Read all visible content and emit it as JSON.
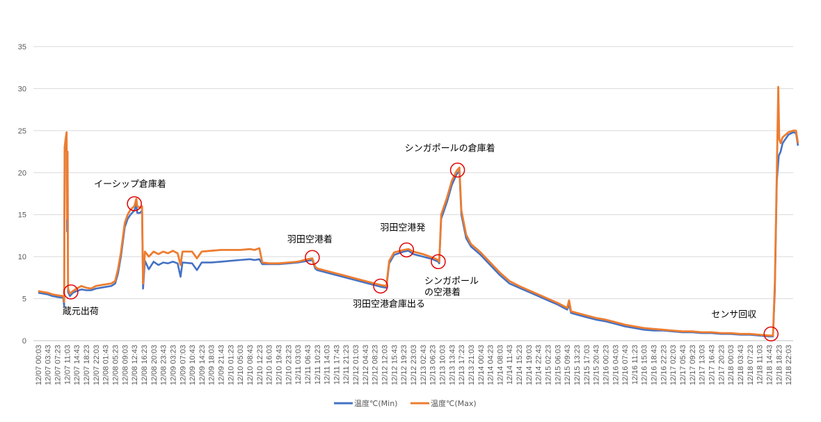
{
  "chart_data": {
    "type": "line",
    "ylim": [
      0,
      35
    ],
    "yticks": [
      0,
      5,
      10,
      15,
      20,
      25,
      30,
      35
    ],
    "grid": true,
    "legend": "bottom",
    "categories": [
      "12/07 00:03",
      "12/07 03:43",
      "12/07 07:23",
      "12/07 11:03",
      "12/07 14:43",
      "12/07 18:23",
      "12/07 22:03",
      "12/08 01:43",
      "12/08 05:23",
      "12/08 09:03",
      "12/08 12:43",
      "12/08 16:23",
      "12/08 20:03",
      "12/08 23:43",
      "12/09 03:23",
      "12/09 07:03",
      "12/09 10:43",
      "12/09 14:23",
      "12/09 18:03",
      "12/09 21:43",
      "12/10 01:23",
      "12/10 05:03",
      "12/10 08:43",
      "12/10 12:23",
      "12/10 16:03",
      "12/10 19:43",
      "12/10 23:23",
      "12/11 03:03",
      "12/11 06:43",
      "12/11 10:23",
      "12/11 14:03",
      "12/11 17:43",
      "12/11 21:23",
      "12/12 01:03",
      "12/12 04:43",
      "12/12 08:23",
      "12/12 12:03",
      "12/12 15:43",
      "12/12 19:23",
      "12/12 23:03",
      "12/13 02:43",
      "12/13 06:23",
      "12/13 10:03",
      "12/13 13:43",
      "12/13 17:23",
      "12/13 21:03",
      "12/14 00:43",
      "12/14 04:23",
      "12/14 08:03",
      "12/14 11:43",
      "12/14 15:23",
      "12/14 19:03",
      "12/14 22:43",
      "12/15 02:23",
      "12/15 06:03",
      "12/15 09:43",
      "12/15 13:23",
      "12/15 17:03",
      "12/15 20:43",
      "12/16 00:23",
      "12/16 04:03",
      "12/16 07:43",
      "12/16 11:23",
      "12/16 15:03",
      "12/16 18:43",
      "12/16 22:23",
      "12/17 02:03",
      "12/17 05:43",
      "12/17 09:23",
      "12/17 13:03",
      "12/17 16:43",
      "12/17 20:23",
      "12/18 00:03",
      "12/18 03:43",
      "12/18 07:23",
      "12/18 11:03",
      "12/18 14:43",
      "12/18 18:23",
      "12/18 22:03"
    ],
    "series": [
      {
        "name": "温度℃(Min)",
        "color": "#4472C4",
        "points": [
          [
            0,
            5.7
          ],
          [
            1,
            5.5
          ],
          [
            1.5,
            5.3
          ],
          [
            2,
            5.2
          ],
          [
            2.6,
            5.1
          ],
          [
            2.7,
            4.1
          ],
          [
            2.75,
            22.5
          ],
          [
            2.85,
            23.0
          ],
          [
            2.95,
            24.0
          ],
          [
            3.0,
            13.0
          ],
          [
            3.05,
            21.5
          ],
          [
            3.1,
            5.8
          ],
          [
            3.3,
            5.3
          ],
          [
            3.6,
            5.7
          ],
          [
            4,
            5.9
          ],
          [
            4.5,
            6.1
          ],
          [
            5,
            6.0
          ],
          [
            5.5,
            6.0
          ],
          [
            6,
            6.2
          ],
          [
            7,
            6.4
          ],
          [
            7.6,
            6.5
          ],
          [
            8,
            6.8
          ],
          [
            8.3,
            8.0
          ],
          [
            8.6,
            10.0
          ],
          [
            9,
            13.5
          ],
          [
            9.3,
            14.5
          ],
          [
            9.6,
            15.0
          ],
          [
            10,
            15.5
          ],
          [
            10.2,
            16.2
          ],
          [
            10.3,
            15.2
          ],
          [
            10.6,
            15.2
          ],
          [
            10.8,
            15.5
          ],
          [
            10.9,
            6.2
          ],
          [
            11.1,
            9.5
          ],
          [
            11.5,
            8.5
          ],
          [
            12,
            9.4
          ],
          [
            12.5,
            9.0
          ],
          [
            13,
            9.3
          ],
          [
            13.5,
            9.2
          ],
          [
            14,
            9.4
          ],
          [
            14.5,
            9.2
          ],
          [
            14.8,
            7.6
          ],
          [
            15,
            9.3
          ],
          [
            16,
            9.2
          ],
          [
            16.5,
            8.4
          ],
          [
            17,
            9.3
          ],
          [
            18,
            9.3
          ],
          [
            19,
            9.4
          ],
          [
            20,
            9.5
          ],
          [
            21,
            9.6
          ],
          [
            22,
            9.7
          ],
          [
            22.5,
            9.6
          ],
          [
            23,
            9.7
          ],
          [
            23.3,
            9.1
          ],
          [
            24,
            9.1
          ],
          [
            25,
            9.1
          ],
          [
            26,
            9.2
          ],
          [
            27,
            9.3
          ],
          [
            28,
            9.5
          ],
          [
            28.5,
            9.6
          ],
          [
            28.8,
            8.6
          ],
          [
            29,
            8.4
          ],
          [
            30,
            8.1
          ],
          [
            31,
            7.8
          ],
          [
            32,
            7.5
          ],
          [
            33,
            7.2
          ],
          [
            34,
            6.9
          ],
          [
            35,
            6.6
          ],
          [
            35.7,
            6.4
          ],
          [
            36.2,
            6.3
          ],
          [
            36.5,
            9.2
          ],
          [
            37,
            10.2
          ],
          [
            38,
            10.6
          ],
          [
            38.5,
            10.7
          ],
          [
            39,
            10.3
          ],
          [
            40,
            10.0
          ],
          [
            41,
            9.7
          ],
          [
            41.6,
            9.4
          ],
          [
            41.7,
            9.2
          ],
          [
            41.9,
            14.5
          ],
          [
            42.5,
            16.5
          ],
          [
            43,
            18.5
          ],
          [
            43.5,
            19.8
          ],
          [
            43.8,
            20.2
          ],
          [
            44,
            15.0
          ],
          [
            44.5,
            12.2
          ],
          [
            45,
            11.2
          ],
          [
            46,
            10.2
          ],
          [
            47,
            9.0
          ],
          [
            48,
            7.8
          ],
          [
            49,
            6.8
          ],
          [
            50,
            6.3
          ],
          [
            51,
            5.8
          ],
          [
            52,
            5.3
          ],
          [
            53,
            4.8
          ],
          [
            54,
            4.3
          ],
          [
            54.5,
            4.0
          ],
          [
            55,
            3.7
          ],
          [
            55.2,
            4.3
          ],
          [
            55.4,
            3.3
          ],
          [
            56,
            3.1
          ],
          [
            57,
            2.8
          ],
          [
            58,
            2.5
          ],
          [
            59,
            2.3
          ],
          [
            60,
            2.0
          ],
          [
            61,
            1.7
          ],
          [
            62,
            1.5
          ],
          [
            63,
            1.3
          ],
          [
            64,
            1.2
          ],
          [
            65,
            1.2
          ],
          [
            66,
            1.1
          ],
          [
            67,
            1.0
          ],
          [
            68,
            1.0
          ],
          [
            69,
            0.9
          ],
          [
            70,
            0.9
          ],
          [
            71,
            0.8
          ],
          [
            72,
            0.8
          ],
          [
            73,
            0.7
          ],
          [
            74,
            0.7
          ],
          [
            75,
            0.6
          ],
          [
            76,
            0.5
          ],
          [
            76.4,
            0.5
          ],
          [
            76.6,
            6.0
          ],
          [
            76.8,
            19.0
          ],
          [
            77.0,
            22.0
          ],
          [
            77.2,
            22.5
          ],
          [
            77.4,
            23.5
          ],
          [
            78,
            24.5
          ],
          [
            78.5,
            24.8
          ],
          [
            78.8,
            24.7
          ],
          [
            79,
            23.2
          ]
        ]
      },
      {
        "name": "温度℃(Max)",
        "color": "#ED7D31",
        "points": [
          [
            0,
            5.9
          ],
          [
            1,
            5.7
          ],
          [
            1.5,
            5.5
          ],
          [
            2,
            5.4
          ],
          [
            2.6,
            5.3
          ],
          [
            2.7,
            4.6
          ],
          [
            2.75,
            23.0
          ],
          [
            2.85,
            24.0
          ],
          [
            2.95,
            24.8
          ],
          [
            3.0,
            14.5
          ],
          [
            3.05,
            22.5
          ],
          [
            3.1,
            6.2
          ],
          [
            3.3,
            5.6
          ],
          [
            3.6,
            5.9
          ],
          [
            4,
            6.2
          ],
          [
            4.5,
            6.5
          ],
          [
            5,
            6.3
          ],
          [
            5.5,
            6.2
          ],
          [
            6,
            6.5
          ],
          [
            7,
            6.7
          ],
          [
            7.6,
            6.8
          ],
          [
            8,
            7.1
          ],
          [
            8.3,
            8.5
          ],
          [
            8.6,
            10.5
          ],
          [
            9,
            14.0
          ],
          [
            9.3,
            15.0
          ],
          [
            9.6,
            15.6
          ],
          [
            10,
            16.0
          ],
          [
            10.2,
            16.9
          ],
          [
            10.3,
            16.0
          ],
          [
            10.6,
            15.8
          ],
          [
            10.8,
            16.0
          ],
          [
            10.9,
            6.8
          ],
          [
            11.1,
            10.6
          ],
          [
            11.5,
            10.0
          ],
          [
            12,
            10.6
          ],
          [
            12.5,
            10.3
          ],
          [
            13,
            10.6
          ],
          [
            13.5,
            10.4
          ],
          [
            14,
            10.7
          ],
          [
            14.5,
            10.4
          ],
          [
            14.8,
            9.0
          ],
          [
            15,
            10.6
          ],
          [
            16,
            10.6
          ],
          [
            16.5,
            9.8
          ],
          [
            17,
            10.6
          ],
          [
            18,
            10.7
          ],
          [
            19,
            10.8
          ],
          [
            20,
            10.8
          ],
          [
            21,
            10.8
          ],
          [
            22,
            10.9
          ],
          [
            22.5,
            10.8
          ],
          [
            23,
            11.0
          ],
          [
            23.3,
            9.3
          ],
          [
            24,
            9.2
          ],
          [
            25,
            9.2
          ],
          [
            26,
            9.3
          ],
          [
            27,
            9.4
          ],
          [
            28,
            9.7
          ],
          [
            28.5,
            9.8
          ],
          [
            28.8,
            8.8
          ],
          [
            29,
            8.6
          ],
          [
            30,
            8.3
          ],
          [
            31,
            8.0
          ],
          [
            32,
            7.7
          ],
          [
            33,
            7.4
          ],
          [
            34,
            7.1
          ],
          [
            35,
            6.8
          ],
          [
            35.7,
            6.6
          ],
          [
            36.2,
            6.5
          ],
          [
            36.5,
            9.5
          ],
          [
            37,
            10.5
          ],
          [
            38,
            10.8
          ],
          [
            38.5,
            10.9
          ],
          [
            39,
            10.6
          ],
          [
            40,
            10.3
          ],
          [
            41,
            9.9
          ],
          [
            41.6,
            9.6
          ],
          [
            41.7,
            9.4
          ],
          [
            41.9,
            15.0
          ],
          [
            42.5,
            17.0
          ],
          [
            43,
            19.0
          ],
          [
            43.5,
            20.2
          ],
          [
            43.8,
            20.6
          ],
          [
            44,
            15.5
          ],
          [
            44.5,
            12.6
          ],
          [
            45,
            11.5
          ],
          [
            46,
            10.5
          ],
          [
            47,
            9.3
          ],
          [
            48,
            8.1
          ],
          [
            49,
            7.1
          ],
          [
            50,
            6.5
          ],
          [
            51,
            6.0
          ],
          [
            52,
            5.5
          ],
          [
            53,
            5.0
          ],
          [
            54,
            4.5
          ],
          [
            54.5,
            4.2
          ],
          [
            55,
            3.9
          ],
          [
            55.2,
            4.8
          ],
          [
            55.4,
            3.5
          ],
          [
            56,
            3.3
          ],
          [
            57,
            3.0
          ],
          [
            58,
            2.7
          ],
          [
            59,
            2.5
          ],
          [
            60,
            2.2
          ],
          [
            61,
            1.9
          ],
          [
            62,
            1.7
          ],
          [
            63,
            1.5
          ],
          [
            64,
            1.4
          ],
          [
            65,
            1.3
          ],
          [
            66,
            1.2
          ],
          [
            67,
            1.1
          ],
          [
            68,
            1.1
          ],
          [
            69,
            1.0
          ],
          [
            70,
            1.0
          ],
          [
            71,
            0.9
          ],
          [
            72,
            0.9
          ],
          [
            73,
            0.8
          ],
          [
            74,
            0.8
          ],
          [
            75,
            0.7
          ],
          [
            76,
            0.6
          ],
          [
            76.4,
            0.6
          ],
          [
            76.6,
            7.0
          ],
          [
            76.8,
            20.0
          ],
          [
            76.95,
            30.2
          ],
          [
            77.05,
            24.0
          ],
          [
            77.2,
            23.5
          ],
          [
            77.4,
            24.2
          ],
          [
            78,
            24.8
          ],
          [
            78.5,
            25.0
          ],
          [
            78.8,
            25.0
          ],
          [
            79,
            23.5
          ]
        ]
      }
    ],
    "annotations": [
      {
        "text": "蔵元出荷",
        "x": 3.4,
        "y": 5.8
      },
      {
        "text": "イーシップ倉庫着",
        "x": 10.0,
        "y": 16.3
      },
      {
        "text": "羽田空港着",
        "x": 28.5,
        "y": 9.9
      },
      {
        "text": "羽田空港倉庫出る",
        "x": 35.6,
        "y": 6.5
      },
      {
        "text": "羽田空港発",
        "x": 38.3,
        "y": 10.8
      },
      {
        "text": "シンガポール\nの空港着",
        "x": 41.6,
        "y": 9.4
      },
      {
        "text": "シンガポールの倉庫着",
        "x": 43.6,
        "y": 20.3
      },
      {
        "text": "センサ回収",
        "x": 76.2,
        "y": 0.8
      }
    ]
  }
}
